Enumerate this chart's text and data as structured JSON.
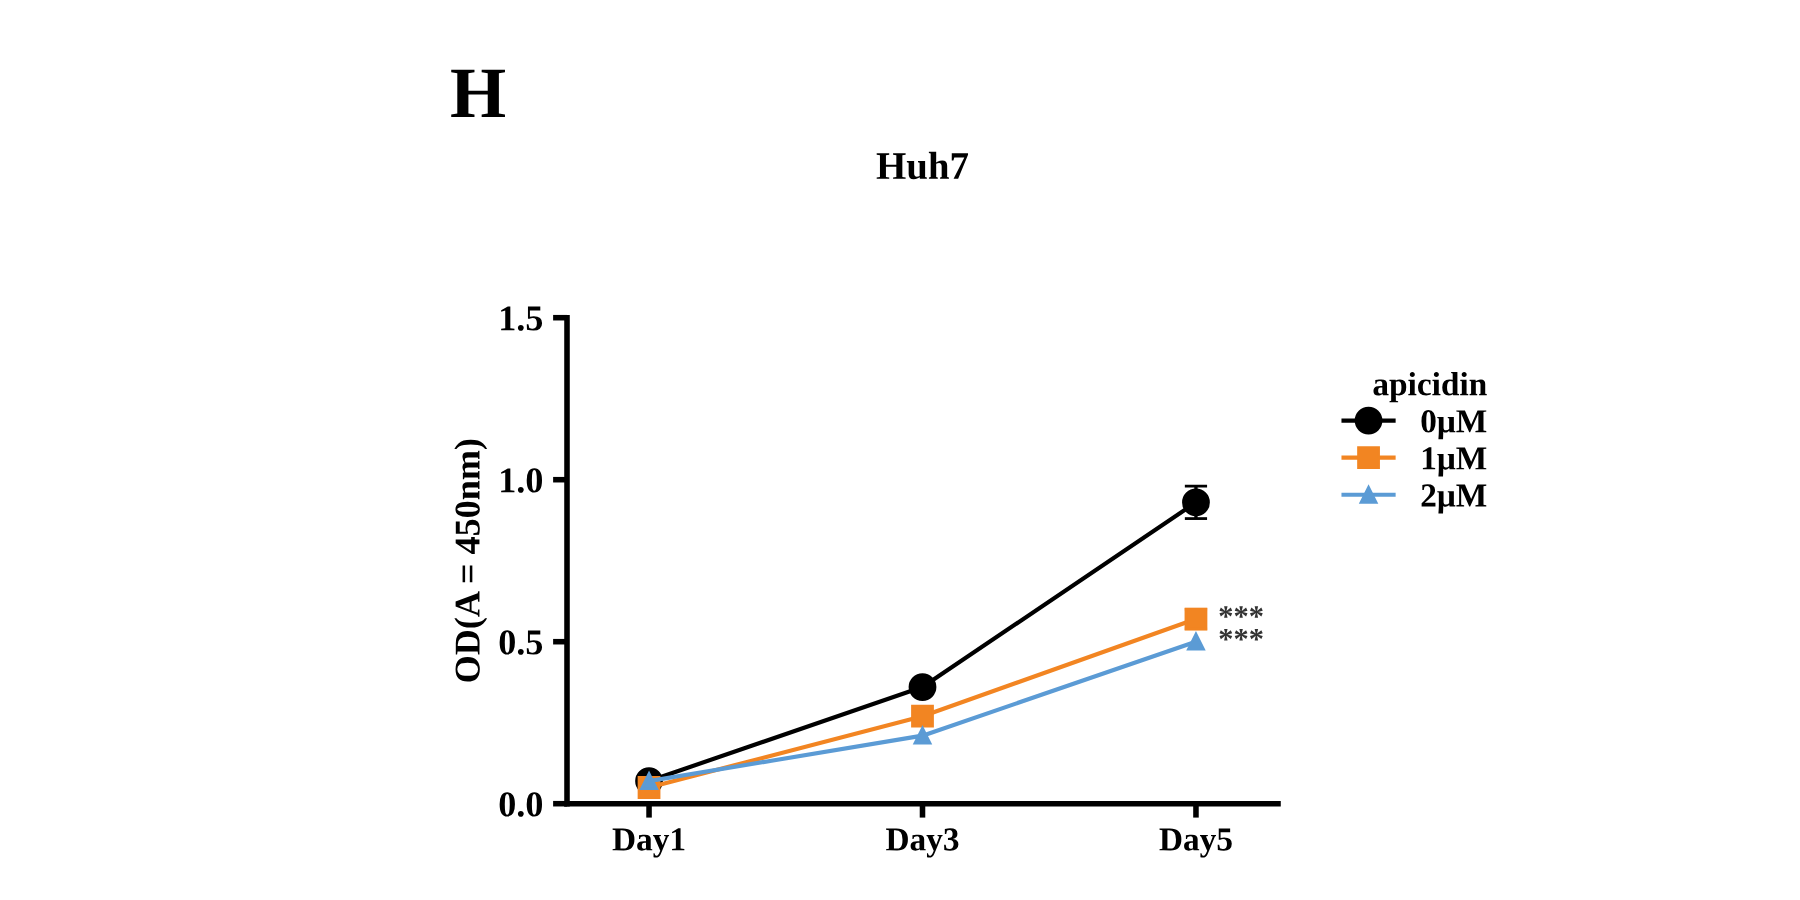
{
  "chart_data": {
    "type": "line",
    "title": "Huh7",
    "ylabel": "OD(A = 450nm)",
    "legend_title": "apicidin",
    "categories": [
      "Day1",
      "Day3",
      "Day5"
    ],
    "series": [
      {
        "name": "0μM",
        "color": "#000000",
        "marker": "circle",
        "values": [
          0.07,
          0.36,
          0.93
        ],
        "errors": [
          null,
          null,
          0.05
        ]
      },
      {
        "name": "1μM",
        "color": "#f28522",
        "marker": "square",
        "values": [
          0.05,
          0.27,
          0.57
        ],
        "errors": [
          null,
          null,
          0.03
        ]
      },
      {
        "name": "2μM",
        "color": "#5b9bd5",
        "marker": "triangle",
        "values": [
          0.07,
          0.21,
          0.5
        ]
      }
    ],
    "ylim": [
      0,
      1.5
    ],
    "yticks": [
      {
        "value": 0,
        "label": "0.0"
      },
      0.5,
      {
        "value": 1,
        "label": "1.0"
      },
      1.5
    ],
    "grid": false,
    "legend": "right",
    "annotations": [
      "H",
      {
        "text": "***",
        "x": "Day5",
        "y": 0.57
      },
      {
        "text": "***",
        "x": "Day5",
        "y": 0.5
      }
    ]
  }
}
